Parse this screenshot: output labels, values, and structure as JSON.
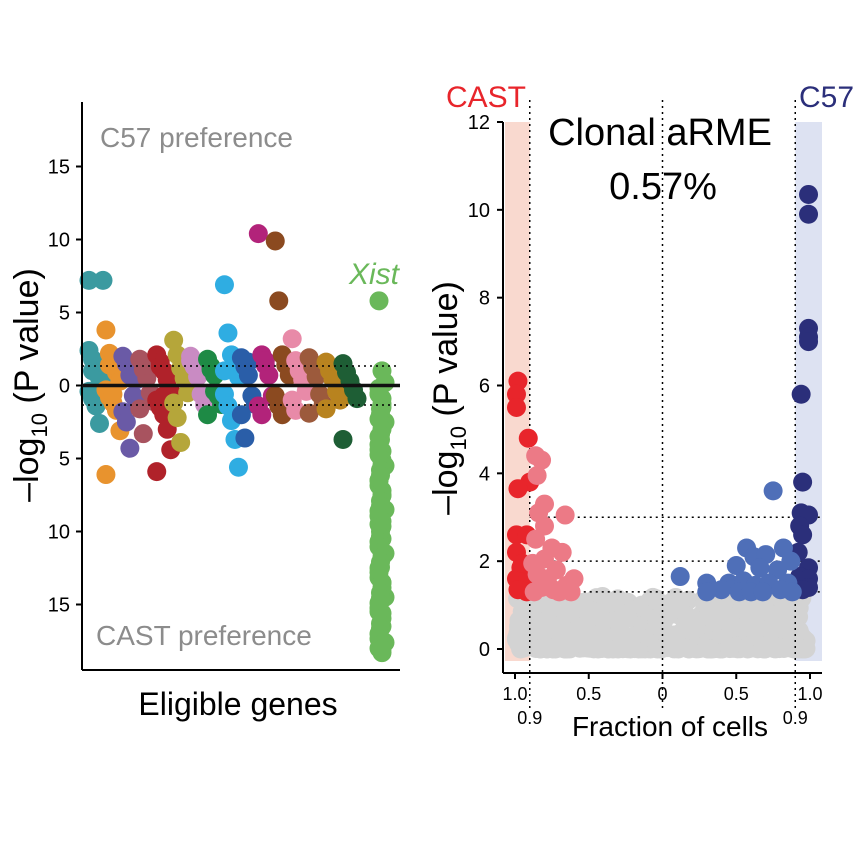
{
  "chart_data": [
    {
      "type": "scatter",
      "xlabel": "Eligible genes",
      "ylabel_prefix": "–log",
      "ylabel_sub": "10",
      "ylabel_suffix": " (P value)",
      "ylim": [
        -18.5,
        18.5
      ],
      "yticks": [
        15,
        10,
        5,
        0,
        5,
        10,
        15
      ],
      "ytick_values": [
        15,
        10,
        5,
        0,
        -5,
        -10,
        -15
      ],
      "threshold": 1.3,
      "annotations": {
        "top": "C57 preference",
        "bottom": "CAST preference",
        "gene_label": "Xist"
      },
      "colors": {
        "annotation_gray": "#8c8c8c",
        "xist_green": "#6ab85a"
      },
      "series": [
        {
          "color": "#3b9aa0",
          "values": [
            2.4,
            1.8,
            1.2,
            0.8,
            0.4,
            -0.4,
            -0.9,
            -1.4,
            -2.6,
            7.2,
            7.2,
            1.0,
            -1.1,
            0.5
          ]
        },
        {
          "color": "#e8932e",
          "values": [
            3.8,
            2.2,
            1.6,
            0.9,
            0.3,
            -0.3,
            -0.8,
            -1.2,
            -1.7,
            -3.1,
            -6.1,
            1.4,
            -0.6
          ]
        },
        {
          "color": "#6a5aa6",
          "values": [
            2.0,
            1.5,
            0.7,
            -0.7,
            -1.3,
            -1.8,
            -2.5,
            -4.3,
            1.1,
            0.4
          ]
        },
        {
          "color": "#a8535f",
          "values": [
            1.8,
            1.1,
            0.5,
            -0.5,
            -1.1,
            -1.6,
            -3.3,
            1.4
          ]
        },
        {
          "color": "#b0222a",
          "values": [
            2.1,
            1.6,
            1.0,
            0.4,
            -0.4,
            -1.0,
            -1.5,
            -2.0,
            -3.0,
            -4.4,
            -5.9,
            1.3,
            -0.7,
            0.8
          ]
        },
        {
          "color": "#b5a63a",
          "values": [
            3.1,
            2.1,
            1.2,
            0.5,
            -0.5,
            -1.2,
            -2.2,
            -3.9,
            1.7
          ]
        },
        {
          "color": "#c98bc3",
          "values": [
            2.0,
            1.3,
            0.6,
            -0.6,
            -1.3,
            1.7
          ]
        },
        {
          "color": "#1e8a45",
          "values": [
            1.8,
            1.3,
            0.7,
            -0.7,
            -1.3,
            -2.0,
            1.1,
            -0.4
          ]
        },
        {
          "color": "#2fade2",
          "values": [
            6.9,
            3.6,
            2.1,
            1.4,
            0.6,
            -0.6,
            -1.4,
            -2.4,
            -3.7,
            -5.6,
            1.0
          ]
        },
        {
          "color": "#2a5ea8",
          "values": [
            1.9,
            1.3,
            0.7,
            -0.7,
            -1.3,
            -2.0,
            -3.6,
            1.6
          ]
        },
        {
          "color": "#b2237a",
          "values": [
            10.4,
            2.1,
            1.4,
            0.7,
            -0.7,
            -1.4,
            -2.0,
            1.7
          ]
        },
        {
          "color": "#8b4a20",
          "values": [
            9.9,
            5.8,
            2.1,
            1.4,
            0.7,
            -0.7,
            -1.4,
            -2.0,
            1.7
          ]
        },
        {
          "color": "#e88aa8",
          "values": [
            3.2,
            1.7,
            1.0,
            0.4,
            -0.4,
            -1.0,
            -1.7
          ]
        },
        {
          "color": "#9c5a3c",
          "values": [
            1.9,
            1.3,
            0.6,
            -0.6,
            -1.3,
            -1.9
          ]
        },
        {
          "color": "#b8831f",
          "values": [
            1.6,
            1.0,
            0.4,
            -0.4,
            -1.0,
            -1.6
          ]
        },
        {
          "color": "#1e5e35",
          "values": [
            1.5,
            0.9,
            0.3,
            -0.3,
            -0.9,
            -3.7
          ]
        },
        {
          "color": "#6ab85a",
          "values": [
            5.8,
            1.0,
            0.2,
            -0.6,
            -1.5,
            -2.5,
            -3.5,
            -4.5,
            -5.5,
            -6.5,
            -7.5,
            -8.5,
            -9.5,
            -10.5,
            -11.5,
            -12.5,
            -13.5,
            -14.5,
            -15.5,
            -16.5,
            -17.6,
            -18.0,
            -18.3
          ]
        }
      ]
    },
    {
      "type": "scatter",
      "title_line1": "Clonal aRME",
      "title_line2": "0.57%",
      "xlabel": "Fraction of cells",
      "ylabel_prefix": "–log",
      "ylabel_sub": "10",
      "ylabel_suffix": " (P value)",
      "ylim": [
        0,
        12
      ],
      "yticks": [
        0,
        2,
        4,
        6,
        8,
        10,
        12
      ],
      "xlim": [
        -1.0,
        1.0
      ],
      "xtick_values": [
        -1.0,
        -0.5,
        0,
        0.5,
        1.0
      ],
      "xtick_labels": [
        "1.0",
        "0.5",
        "0",
        "0.5",
        "1.0"
      ],
      "xtick_sub_values": [
        -0.9,
        0.9
      ],
      "xtick_sub_labels": [
        "0.9",
        "0.9"
      ],
      "left_label": "CAST",
      "right_label": "C57",
      "hlines": [
        1.3,
        2.0,
        3.0
      ],
      "vlines": [
        -0.9,
        0,
        0.9
      ],
      "colors": {
        "cast_strong": "#e8252b",
        "cast_weak": "#ec7a86",
        "c57_strong": "#2b2f7a",
        "c57_weak": "#4f6fb8",
        "nonsig": "#d3d3d3",
        "cast_band": "#f9d9cf",
        "c57_band": "#dde2f2"
      },
      "points": [
        {
          "group": "cast_strong",
          "xy": [
            [
              -0.98,
              6.1
            ],
            [
              -0.99,
              5.8
            ],
            [
              -0.99,
              5.5
            ],
            [
              -0.91,
              4.8
            ],
            [
              -0.9,
              3.8
            ],
            [
              -0.98,
              3.65
            ],
            [
              -0.99,
              2.6
            ],
            [
              -0.92,
              2.6
            ],
            [
              -0.99,
              2.2
            ],
            [
              -0.96,
              1.85
            ],
            [
              -0.99,
              1.6
            ],
            [
              -0.93,
              1.5
            ],
            [
              -0.98,
              1.35
            ],
            [
              -0.95,
              1.95
            ],
            [
              -0.92,
              1.3
            ]
          ]
        },
        {
          "group": "cast_weak",
          "xy": [
            [
              -0.86,
              4.4
            ],
            [
              -0.82,
              4.3
            ],
            [
              -0.85,
              3.95
            ],
            [
              -0.8,
              3.3
            ],
            [
              -0.84,
              3.1
            ],
            [
              -0.66,
              3.05
            ],
            [
              -0.8,
              2.8
            ],
            [
              -0.86,
              2.5
            ],
            [
              -0.75,
              2.3
            ],
            [
              -0.68,
              2.2
            ],
            [
              -0.8,
              2.05
            ],
            [
              -0.88,
              1.95
            ],
            [
              -0.72,
              1.8
            ],
            [
              -0.85,
              1.7
            ],
            [
              -0.78,
              1.6
            ],
            [
              -0.6,
              1.6
            ],
            [
              -0.65,
              1.45
            ],
            [
              -0.82,
              1.4
            ],
            [
              -0.74,
              1.35
            ],
            [
              -0.87,
              1.3
            ],
            [
              -0.7,
              1.3
            ],
            [
              -0.62,
              1.3
            ]
          ]
        },
        {
          "group": "c57_strong",
          "xy": [
            [
              0.99,
              10.35
            ],
            [
              0.99,
              9.9
            ],
            [
              0.99,
              7.3
            ],
            [
              0.99,
              7.1
            ],
            [
              0.99,
              7.0
            ],
            [
              0.94,
              5.8
            ],
            [
              0.95,
              3.8
            ],
            [
              0.94,
              3.1
            ],
            [
              0.99,
              3.05
            ],
            [
              0.93,
              2.8
            ],
            [
              0.95,
              2.6
            ],
            [
              0.92,
              2.2
            ],
            [
              0.99,
              1.85
            ],
            [
              0.93,
              1.65
            ],
            [
              0.99,
              1.6
            ],
            [
              0.99,
              1.4
            ],
            [
              0.95,
              1.35
            ]
          ]
        },
        {
          "group": "c57_weak",
          "xy": [
            [
              0.75,
              3.6
            ],
            [
              0.12,
              1.65
            ],
            [
              0.3,
              1.5
            ],
            [
              0.57,
              2.3
            ],
            [
              0.62,
              2.1
            ],
            [
              0.7,
              2.15
            ],
            [
              0.82,
              2.3
            ],
            [
              0.87,
              2.0
            ],
            [
              0.5,
              1.9
            ],
            [
              0.66,
              1.85
            ],
            [
              0.78,
              1.8
            ],
            [
              0.45,
              1.5
            ],
            [
              0.55,
              1.55
            ],
            [
              0.63,
              1.45
            ],
            [
              0.72,
              1.5
            ],
            [
              0.85,
              1.5
            ],
            [
              0.4,
              1.35
            ],
            [
              0.52,
              1.3
            ],
            [
              0.6,
              1.3
            ],
            [
              0.68,
              1.3
            ],
            [
              0.8,
              1.35
            ],
            [
              0.88,
              1.3
            ],
            [
              0.3,
              1.3
            ]
          ]
        }
      ],
      "nonsig_points": {
        "x_from": -0.99,
        "x_to": 0.99,
        "y_max": 1.2
      }
    }
  ]
}
